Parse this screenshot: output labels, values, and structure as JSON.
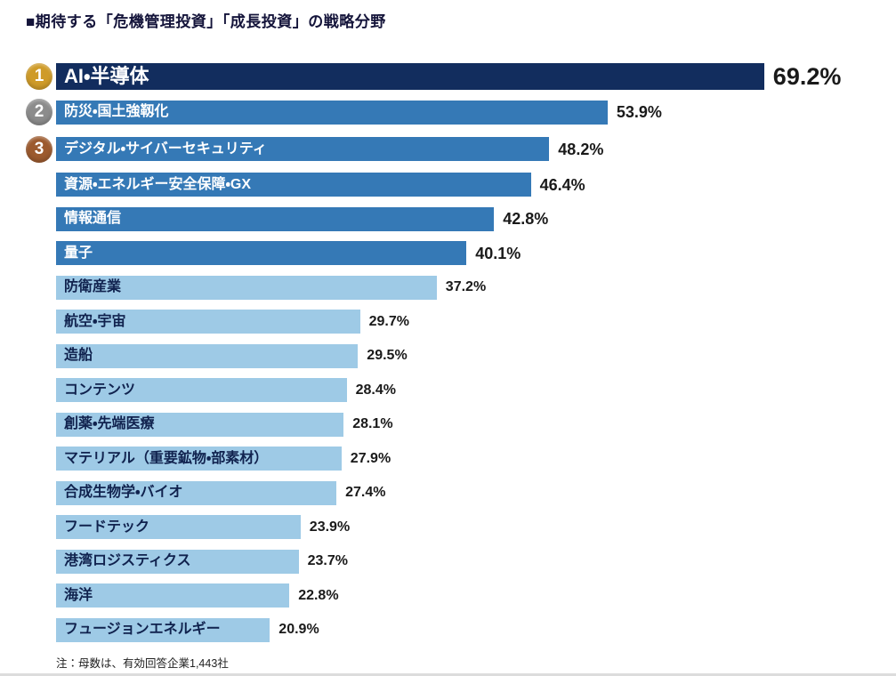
{
  "title": "■期待する「危機管理投資」「成長投資」の戦略分野",
  "footnote": "注：母数は、有効回答企業1,443社",
  "chart_data": {
    "type": "bar",
    "orientation": "horizontal",
    "title": "期待する「危機管理投資」「成長投資」の戦略分野",
    "value_unit": "%",
    "value_range": [
      0,
      69.2
    ],
    "grid": false,
    "legend": false,
    "sample_note": "有効回答企業1,443社",
    "categories": [
      "AI・半導体",
      "防災・国土強靱化",
      "デジタル・サイバーセキュリティ",
      "資源・エネルギー安全保障・GX",
      "情報通信",
      "量子",
      "防衛産業",
      "航空・宇宙",
      "造船",
      "コンテンツ",
      "創薬・先端医療",
      "マテリアル（重要鉱物・部素材）",
      "合成生物学・バイオ",
      "フードテック",
      "港湾ロジスティクス",
      "海洋",
      "フュージョンエネルギー"
    ],
    "values": [
      69.2,
      53.9,
      48.2,
      46.4,
      42.8,
      40.1,
      37.2,
      29.7,
      29.5,
      28.4,
      28.1,
      27.9,
      27.4,
      23.9,
      23.7,
      22.8,
      20.9
    ],
    "items": [
      {
        "label": "AI・半導体",
        "value": 69.2,
        "rank": 1,
        "tier": "dark"
      },
      {
        "label": "防災・国土強靱化",
        "value": 53.9,
        "rank": 2,
        "tier": "mid"
      },
      {
        "label": "デジタル・サイバーセキュリティ",
        "value": 48.2,
        "rank": 3,
        "tier": "mid"
      },
      {
        "label": "資源・エネルギー安全保障・GX",
        "value": 46.4,
        "tier": "mid"
      },
      {
        "label": "情報通信",
        "value": 42.8,
        "tier": "mid"
      },
      {
        "label": "量子",
        "value": 40.1,
        "tier": "mid"
      },
      {
        "label": "防衛産業",
        "value": 37.2,
        "tier": "light"
      },
      {
        "label": "航空・宇宙",
        "value": 29.7,
        "tier": "light"
      },
      {
        "label": "造船",
        "value": 29.5,
        "tier": "light"
      },
      {
        "label": "コンテンツ",
        "value": 28.4,
        "tier": "light"
      },
      {
        "label": "創薬・先端医療",
        "value": 28.1,
        "tier": "light"
      },
      {
        "label": "マテリアル（重要鉱物・部素材）",
        "value": 27.9,
        "tier": "light"
      },
      {
        "label": "合成生物学・バイオ",
        "value": 27.4,
        "tier": "light"
      },
      {
        "label": "フードテック",
        "value": 23.9,
        "tier": "light"
      },
      {
        "label": "港湾ロジスティクス",
        "value": 23.7,
        "tier": "light"
      },
      {
        "label": "海洋",
        "value": 22.8,
        "tier": "light"
      },
      {
        "label": "フュージョンエネルギー",
        "value": 20.9,
        "tier": "light"
      }
    ],
    "colors": {
      "bar_dark": "#122d5e",
      "bar_mid": "#3579b6",
      "bar_light": "#9ecae6",
      "badge_gold": "#cf9b28",
      "badge_silver": "#8c8c8c",
      "badge_bronze": "#9c5a2e",
      "label_on_dark": "#ffffff",
      "label_on_light": "#10224e",
      "value_text": "#1a1a1a",
      "title_text": "#14143a"
    }
  }
}
